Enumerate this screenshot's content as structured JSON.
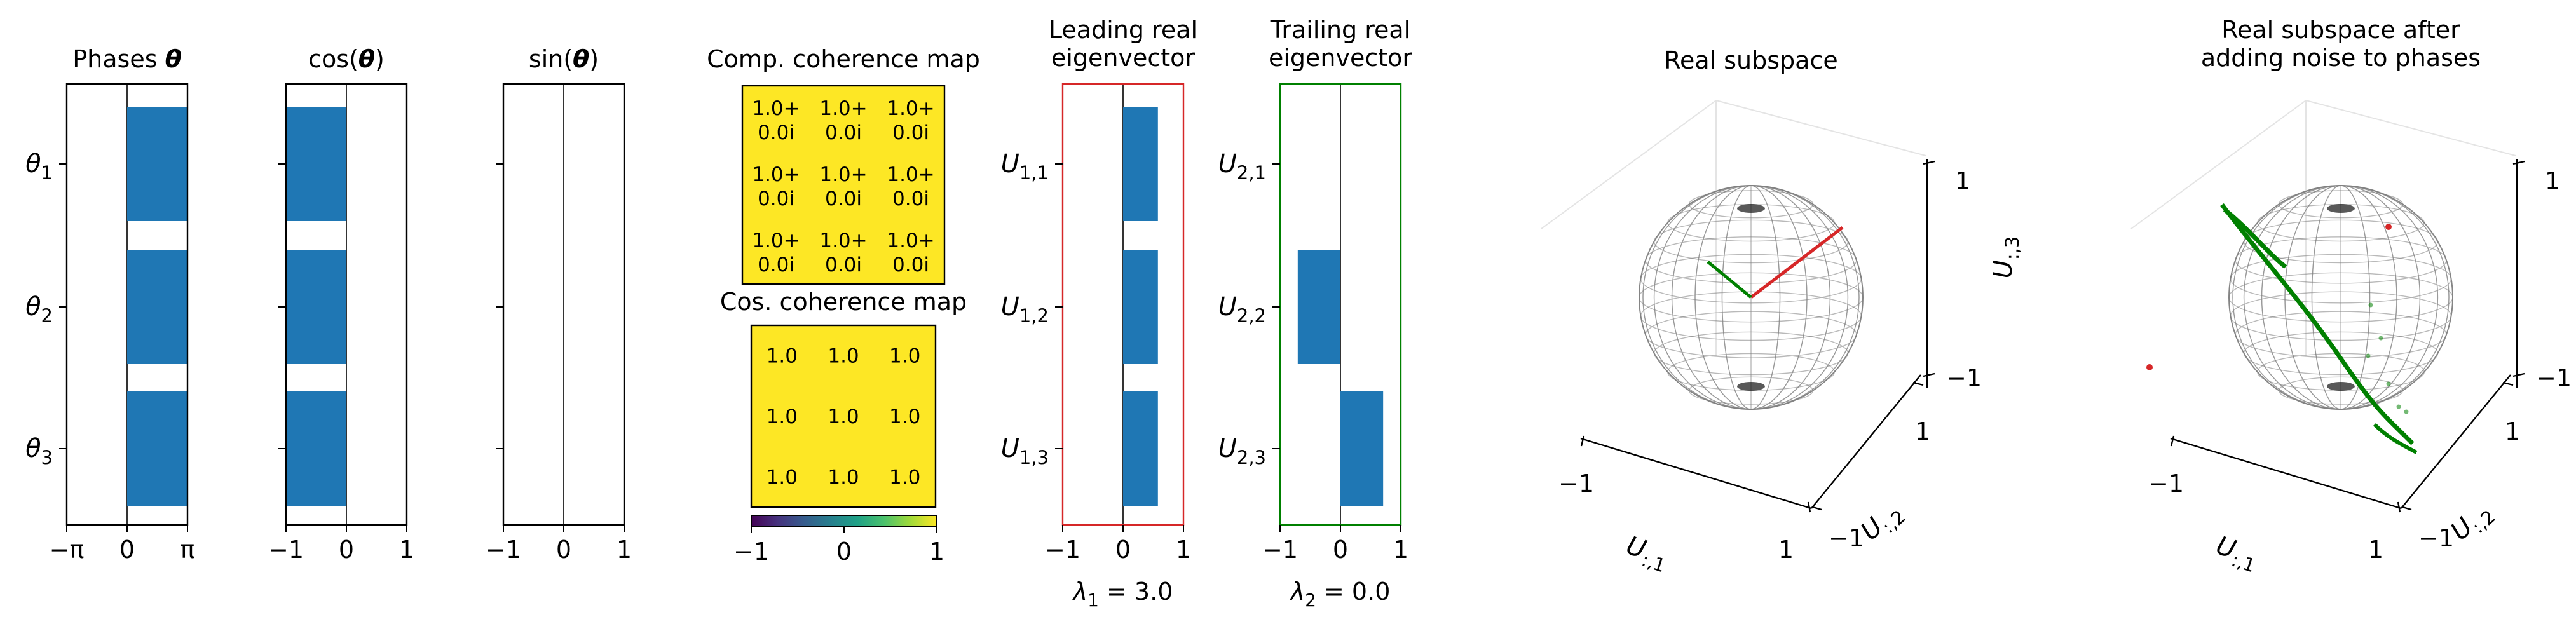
{
  "colors": {
    "bar": "#1f77b4",
    "heat_high": "#fde725",
    "leading": "#d62728",
    "trailing": "#008000",
    "sphere_line": "#808080"
  },
  "chart_data": [
    {
      "id": "phases",
      "type": "bar",
      "orientation": "horizontal",
      "title": "Phases θ",
      "title_parts": [
        "Phases ",
        "θ"
      ],
      "categories": [
        "θ1",
        "θ2",
        "θ3"
      ],
      "values": [
        3.1416,
        3.1416,
        3.1416
      ],
      "xlim": [
        -3.1416,
        3.1416
      ],
      "xticks": [
        -3.1416,
        0,
        3.1416
      ],
      "xtick_labels": [
        "−π",
        "0",
        "π"
      ]
    },
    {
      "id": "cos",
      "type": "bar",
      "orientation": "horizontal",
      "title": "cos(θ)",
      "title_parts": [
        "cos(",
        "θ",
        ")"
      ],
      "categories": [
        "θ1",
        "θ2",
        "θ3"
      ],
      "values": [
        -1.0,
        -1.0,
        -1.0
      ],
      "xlim": [
        -1,
        1
      ],
      "xticks": [
        -1,
        0,
        1
      ],
      "xtick_labels": [
        "−1",
        "0",
        "1"
      ]
    },
    {
      "id": "sin",
      "type": "bar",
      "orientation": "horizontal",
      "title": "sin(θ)",
      "title_parts": [
        "sin(",
        "θ",
        ")"
      ],
      "categories": [
        "θ1",
        "θ2",
        "θ3"
      ],
      "values": [
        0,
        0,
        0
      ],
      "xlim": [
        -1,
        1
      ],
      "xticks": [
        -1,
        0,
        1
      ],
      "xtick_labels": [
        "−1",
        "0",
        "1"
      ]
    },
    {
      "id": "comp_coherence",
      "type": "heatmap",
      "title": "Comp. coherence map",
      "cells": [
        [
          "1.0+\n0.0i",
          "1.0+\n0.0i",
          "1.0+\n0.0i"
        ],
        [
          "1.0+\n0.0i",
          "1.0+\n0.0i",
          "1.0+\n0.0i"
        ],
        [
          "1.0+\n0.0i",
          "1.0+\n0.0i",
          "1.0+\n0.0i"
        ]
      ]
    },
    {
      "id": "cos_coherence",
      "type": "heatmap",
      "title": "Cos. coherence map",
      "cells": [
        [
          "1.0",
          "1.0",
          "1.0"
        ],
        [
          "1.0",
          "1.0",
          "1.0"
        ],
        [
          "1.0",
          "1.0",
          "1.0"
        ]
      ],
      "colorbar": {
        "range": [
          -1,
          1
        ],
        "ticks": [
          "−1",
          "0",
          "1"
        ],
        "colormap": "viridis"
      }
    },
    {
      "id": "leading",
      "type": "bar",
      "orientation": "horizontal",
      "title": "Leading real\neigenvector",
      "categories": [
        "U1,1",
        "U1,2",
        "U1,3"
      ],
      "values": [
        0.577,
        0.577,
        0.577
      ],
      "xlim": [
        -1,
        1
      ],
      "xticks": [
        -1,
        0,
        1
      ],
      "xtick_labels": [
        "−1",
        "0",
        "1"
      ],
      "caption": "λ1 = 3.0",
      "caption_parts": [
        "λ",
        "1",
        " = 3.0"
      ]
    },
    {
      "id": "trailing",
      "type": "bar",
      "orientation": "horizontal",
      "title": "Trailing real\neigenvector",
      "categories": [
        "U2,1",
        "U2,2",
        "U2,3"
      ],
      "values": [
        0.0,
        -0.707,
        0.707
      ],
      "xlim": [
        -1,
        1
      ],
      "xticks": [
        -1,
        0,
        1
      ],
      "xtick_labels": [
        "−1",
        "0",
        "1"
      ],
      "caption": "λ2 = 0.0",
      "caption_parts": [
        "λ",
        "2",
        " = 0.0"
      ]
    },
    {
      "id": "real_subspace",
      "type": "scatter",
      "title": "Real subspace",
      "axis_labels": {
        "x": "U:,1",
        "y": "U:,2",
        "z": "U:,3"
      },
      "ticks": {
        "x": [
          "−1",
          "1"
        ],
        "y": [
          "−1",
          "1"
        ],
        "z": [
          "−1",
          "1"
        ]
      }
    },
    {
      "id": "noisy_subspace",
      "type": "scatter",
      "title": "Real subspace after\nadding noise to phases",
      "axis_labels": {
        "x": "U:,1",
        "y": "U:,2",
        "z": "U:,3"
      },
      "ticks": {
        "x": [
          "−1",
          "1"
        ],
        "y": [
          "−1",
          "1"
        ],
        "z": [
          "−1",
          "1"
        ]
      }
    }
  ]
}
